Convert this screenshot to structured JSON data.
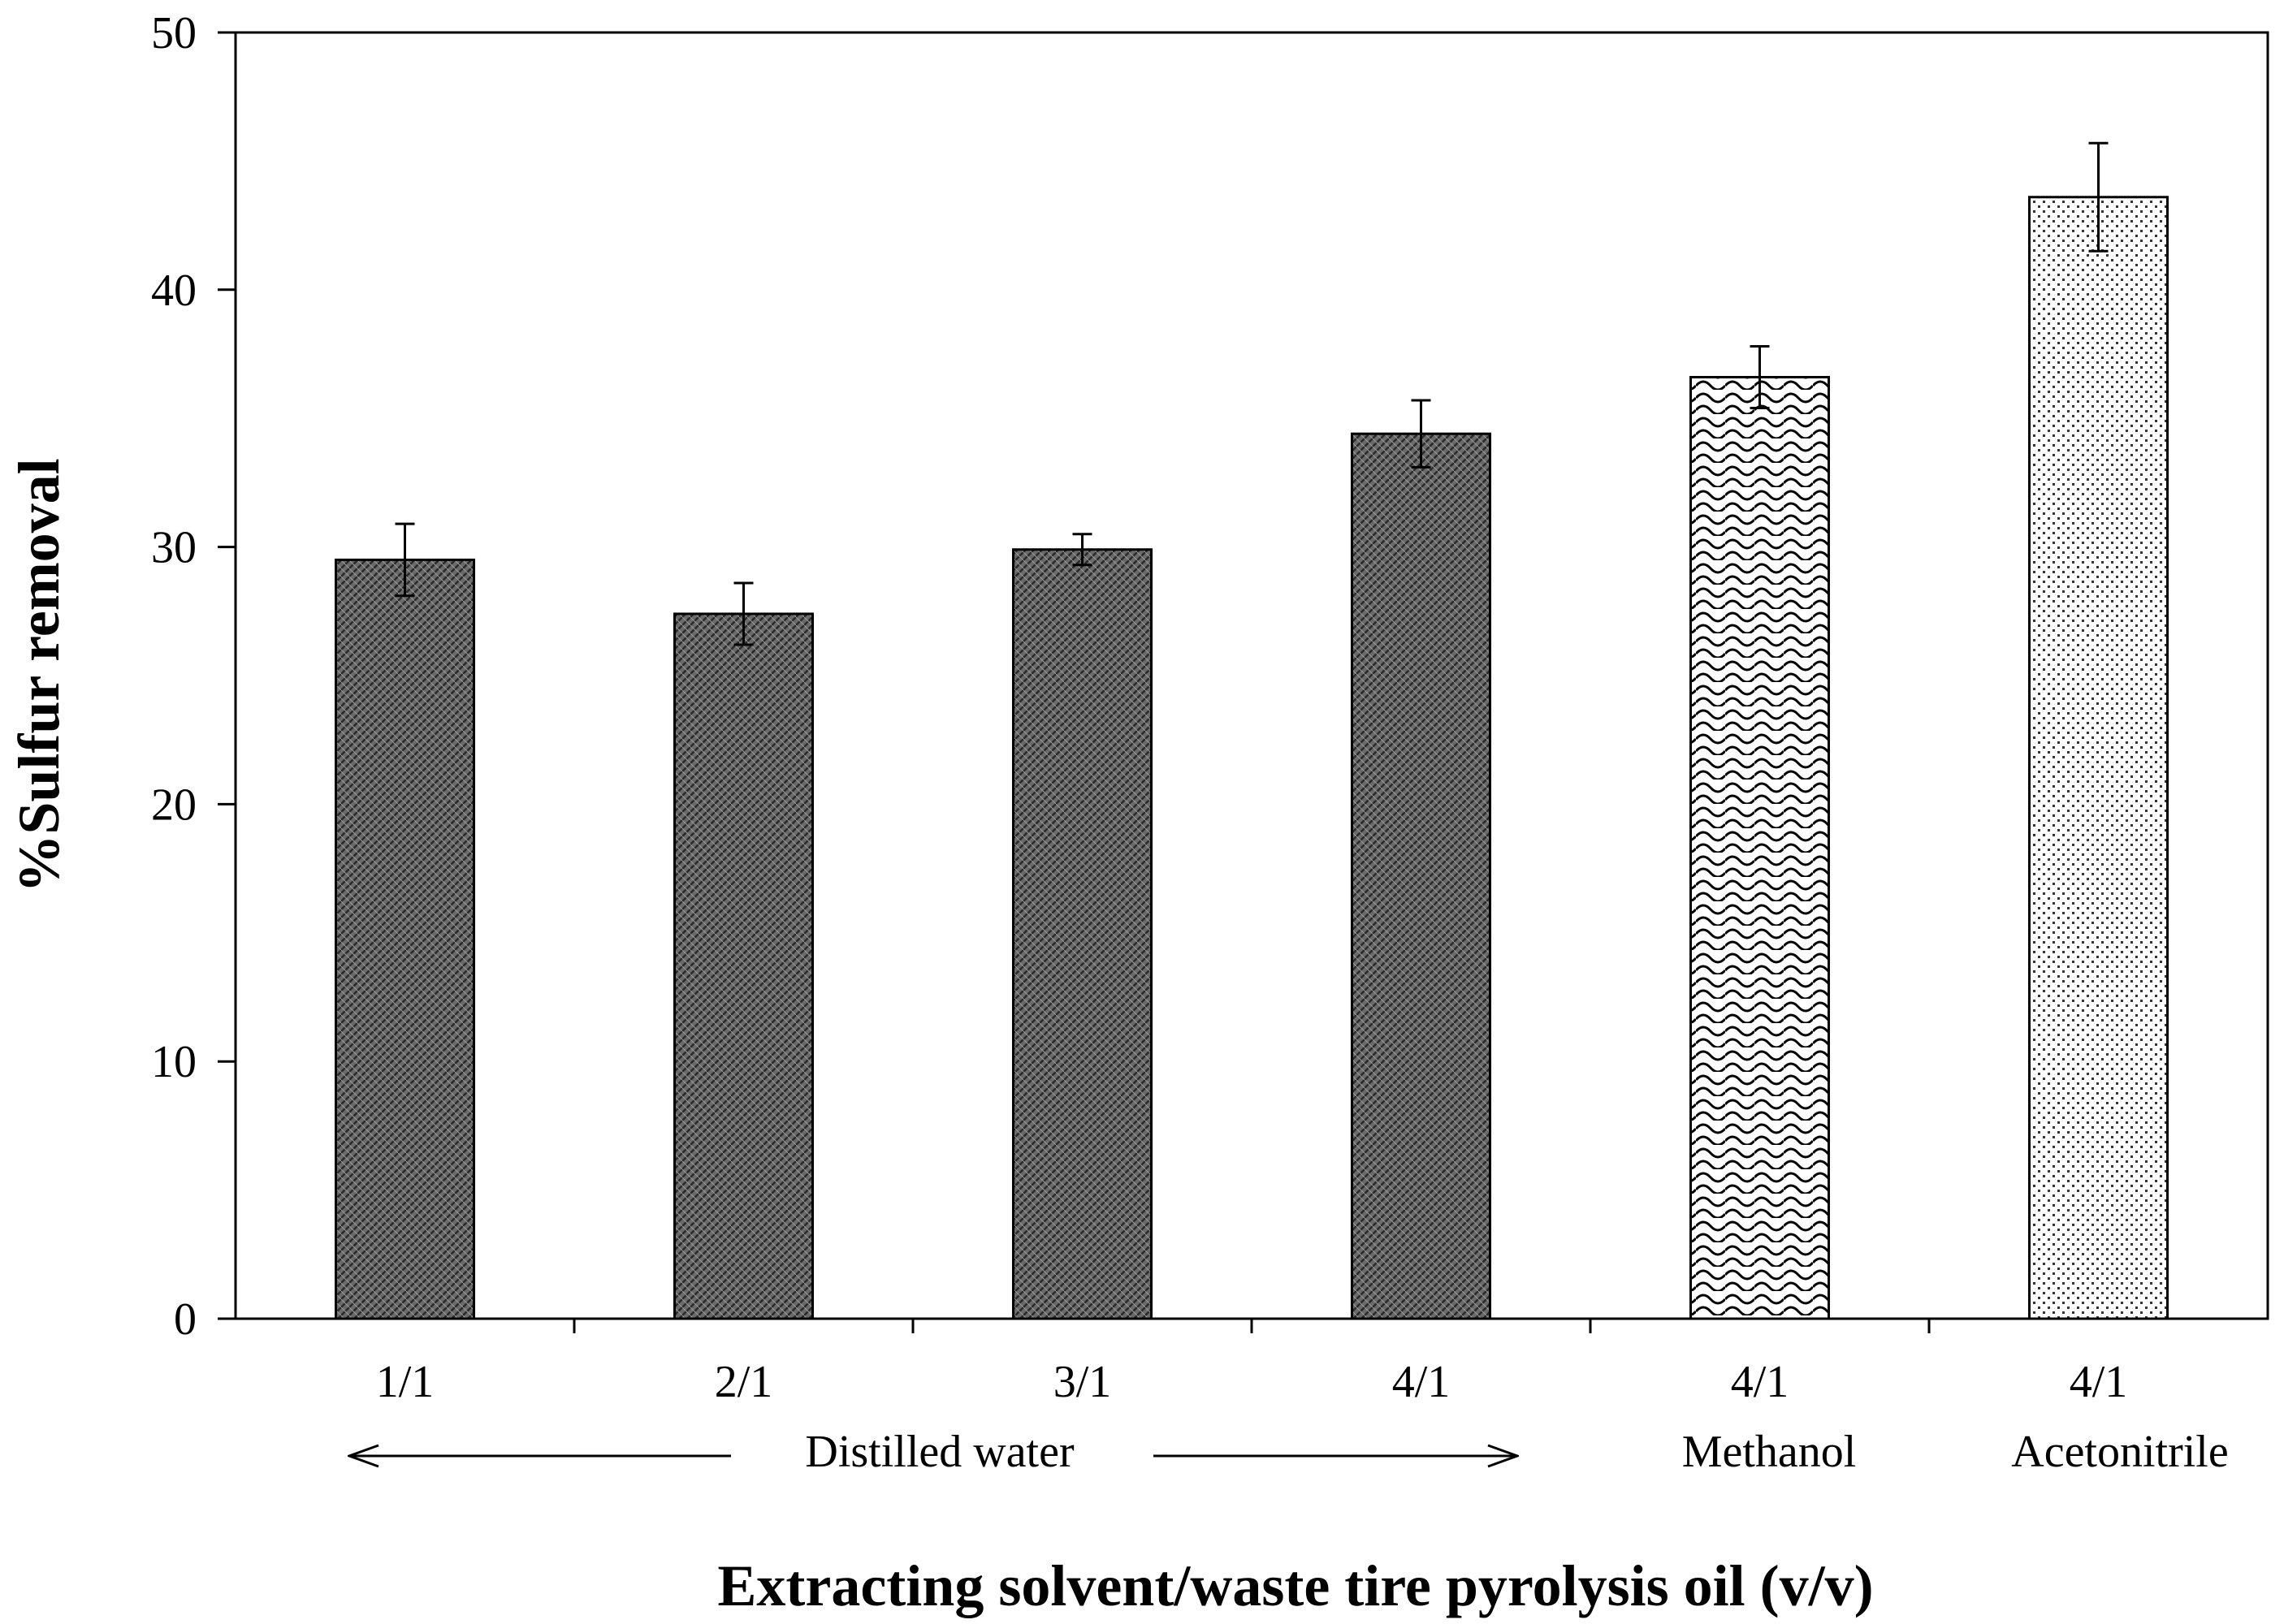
{
  "chart_data": {
    "type": "bar",
    "title": "",
    "xlabel": "Extracting solvent/waste tire pyrolysis oil (v/v)",
    "ylabel": "%Sulfur removal",
    "ylim": [
      0,
      50
    ],
    "yticks": [
      0,
      10,
      20,
      30,
      40,
      50
    ],
    "grid": false,
    "categories": [
      "1/1",
      "2/1",
      "3/1",
      "4/1",
      "4/1",
      "4/1"
    ],
    "values": [
      29.5,
      27.4,
      29.9,
      34.4,
      36.6,
      43.6
    ],
    "errors": [
      1.4,
      1.2,
      0.6,
      1.3,
      1.2,
      2.1
    ],
    "solvents": [
      "Distilled water",
      "Distilled water",
      "Distilled water",
      "Distilled water",
      "Methanol",
      "Acetonitrile"
    ],
    "group_labels": [
      {
        "label": "Distilled water",
        "span": [
          0,
          3
        ]
      },
      {
        "label": "Methanol",
        "span": [
          4,
          4
        ]
      },
      {
        "label": "Acetonitrile",
        "span": [
          5,
          5
        ]
      }
    ],
    "fill_patterns": [
      "dense-crosshatch",
      "dense-crosshatch",
      "dense-crosshatch",
      "dense-crosshatch",
      "wave",
      "dots"
    ],
    "colors": {
      "bar_dark": "#555555",
      "stroke": "#000000",
      "background": "#ffffff"
    }
  }
}
